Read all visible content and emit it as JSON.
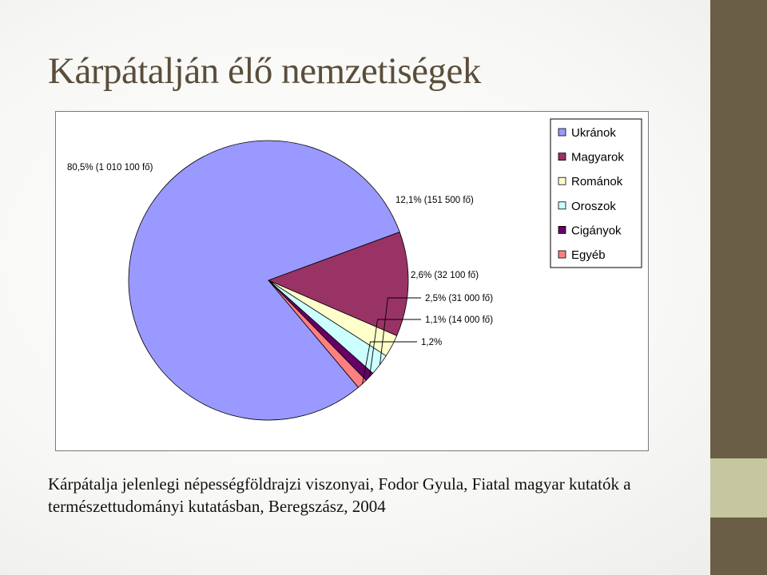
{
  "slide": {
    "title": "Kárpátalján élő nemzetiségek",
    "caption": "Kárpátalja jelenlegi népességföldrajzi viszonyai, Fodor Gyula, Fiatal magyar kutatók a természettudományi kutatásban, Beregszász, 2004"
  },
  "colors": {
    "sidebar": "#6a5e46",
    "sidebar_accent": "#c6c6a1",
    "title": "#5a4e3a"
  },
  "chart_data": {
    "type": "pie",
    "legend_position": "top-right",
    "series": [
      {
        "name": "Ukránok",
        "value": 80.5,
        "label": "80,5% (1 010 100 fő)",
        "color": "#9999ff"
      },
      {
        "name": "Magyarok",
        "value": 12.1,
        "label": "12,1% (151 500 fő)",
        "color": "#993366"
      },
      {
        "name": "Románok",
        "value": 2.6,
        "label": "2,6% (32 100 fő)",
        "color": "#ffffcc"
      },
      {
        "name": "Oroszok",
        "value": 2.5,
        "label": "2,5% (31 000 fő)",
        "color": "#ccffff"
      },
      {
        "name": "Cigányok",
        "value": 1.1,
        "label": "1,1% (14 000 fő)",
        "color": "#660066"
      },
      {
        "name": "Egyéb",
        "value": 1.2,
        "label": "1,2%",
        "color": "#ff8080"
      }
    ]
  }
}
